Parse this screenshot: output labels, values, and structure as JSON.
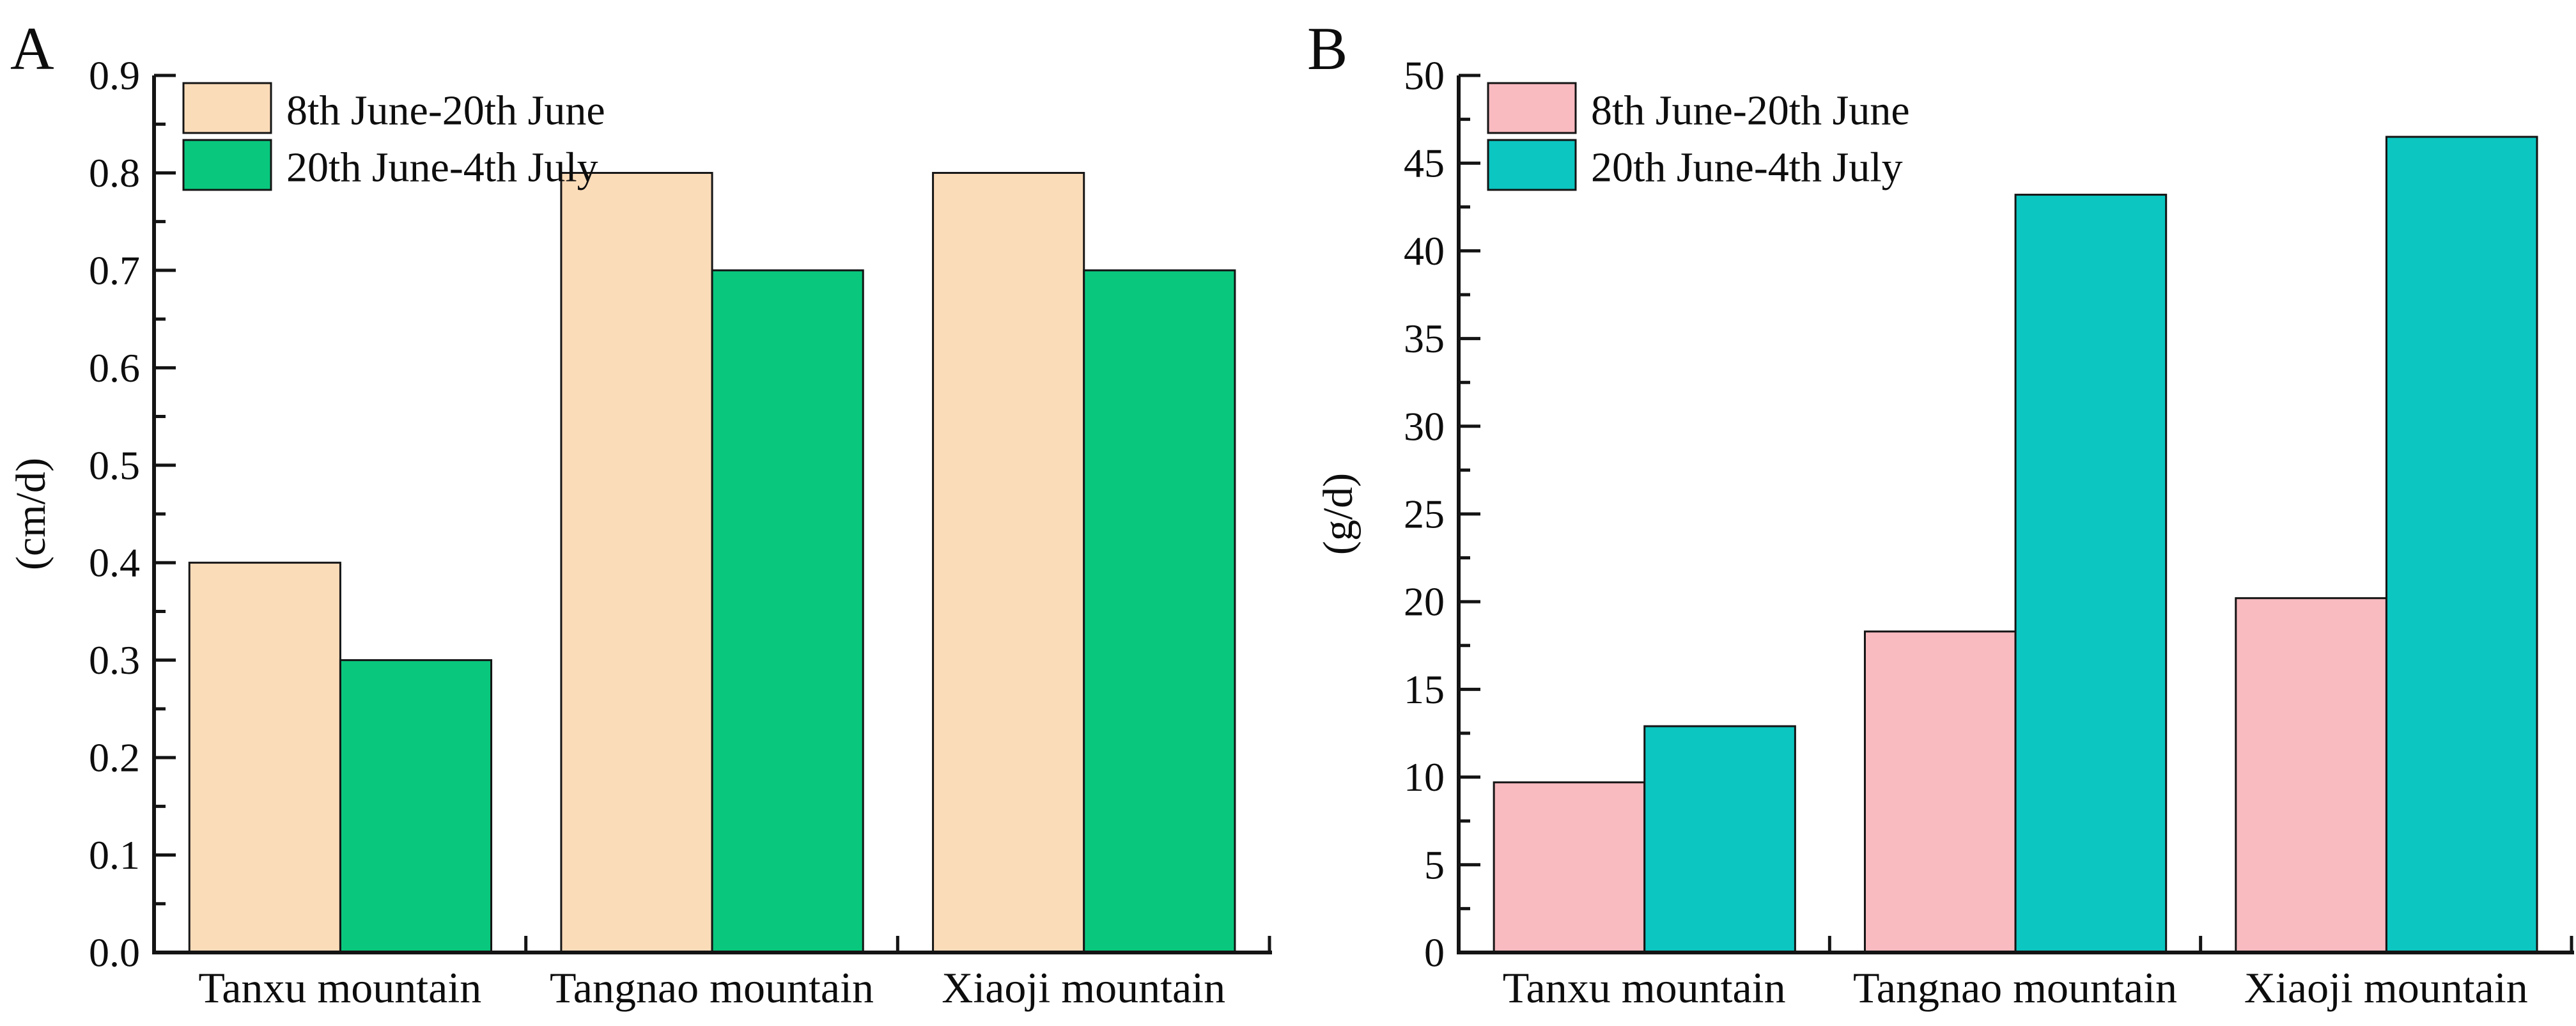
{
  "figure": {
    "background": "#ffffff",
    "text_color": "#0d0d0d",
    "axis_color": "#141414"
  },
  "chart_data": [
    {
      "type": "bar",
      "panel_label": "A",
      "title": "",
      "xlabel": "",
      "ylabel": "(cm/d)",
      "ylim": [
        0,
        0.9
      ],
      "ytick_major": 0.1,
      "ytick_minor": 0.05,
      "ytick_labels": [
        "0.0",
        "0.1",
        "0.2",
        "0.3",
        "0.4",
        "0.5",
        "0.6",
        "0.7",
        "0.8",
        "0.9"
      ],
      "grid": false,
      "legend_position": "top-left",
      "categories": [
        "Tanxu mountain",
        "Tangnao mountain",
        "Xiaoji mountain"
      ],
      "series": [
        {
          "name": "8th June-20th June",
          "color": "#FBDCB9",
          "values": [
            0.4,
            0.8,
            0.8
          ]
        },
        {
          "name": "20th June-4th July",
          "color": "#09C87E",
          "values": [
            0.3,
            0.7,
            0.7
          ]
        }
      ],
      "bar_edge_color": "#141414"
    },
    {
      "type": "bar",
      "panel_label": "B",
      "title": "",
      "xlabel": "",
      "ylabel": "(g/d)",
      "ylim": [
        0,
        50
      ],
      "ytick_major": 5,
      "ytick_minor": 2.5,
      "ytick_labels": [
        "0",
        "5",
        "10",
        "15",
        "20",
        "25",
        "30",
        "35",
        "40",
        "45",
        "50"
      ],
      "grid": false,
      "legend_position": "top-left",
      "categories": [
        "Tanxu mountain",
        "Tangnao mountain",
        "Xiaoji mountain"
      ],
      "series": [
        {
          "name": "8th June-20th June",
          "color": "#F9BAC0",
          "values": [
            9.7,
            18.3,
            20.2
          ]
        },
        {
          "name": "20th June-4th July",
          "color": "#0BC6C1",
          "values": [
            12.9,
            43.2,
            46.5
          ]
        }
      ],
      "bar_edge_color": "#141414"
    }
  ]
}
